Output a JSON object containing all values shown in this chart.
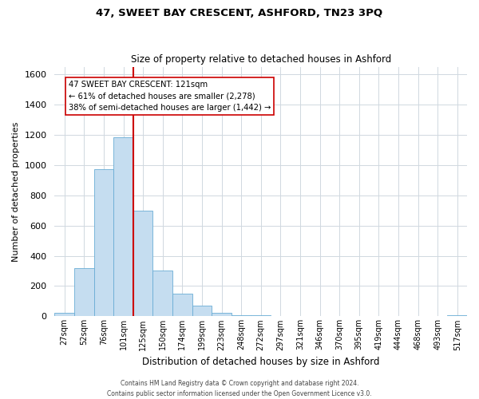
{
  "title": "47, SWEET BAY CRESCENT, ASHFORD, TN23 3PQ",
  "subtitle": "Size of property relative to detached houses in Ashford",
  "xlabel": "Distribution of detached houses by size in Ashford",
  "ylabel": "Number of detached properties",
  "bin_labels": [
    "27sqm",
    "52sqm",
    "76sqm",
    "101sqm",
    "125sqm",
    "150sqm",
    "174sqm",
    "199sqm",
    "223sqm",
    "248sqm",
    "272sqm",
    "297sqm",
    "321sqm",
    "346sqm",
    "370sqm",
    "395sqm",
    "419sqm",
    "444sqm",
    "468sqm",
    "493sqm",
    "517sqm"
  ],
  "bar_heights": [
    25,
    320,
    970,
    1185,
    700,
    305,
    150,
    70,
    25,
    5,
    5,
    2,
    2,
    0,
    0,
    0,
    0,
    0,
    0,
    0,
    5
  ],
  "bar_color": "#c5ddf0",
  "bar_edge_color": "#6aadd5",
  "reference_line_color": "#cc0000",
  "annotation_text": "47 SWEET BAY CRESCENT: 121sqm\n← 61% of detached houses are smaller (2,278)\n38% of semi-detached houses are larger (1,442) →",
  "annotation_box_color": "#ffffff",
  "annotation_box_edge_color": "#cc0000",
  "ylim": [
    0,
    1650
  ],
  "yticks": [
    0,
    200,
    400,
    600,
    800,
    1000,
    1200,
    1400,
    1600
  ],
  "footer_line1": "Contains HM Land Registry data © Crown copyright and database right 2024.",
  "footer_line2": "Contains public sector information licensed under the Open Government Licence v3.0.",
  "background_color": "#ffffff",
  "grid_color": "#d0d8e0"
}
